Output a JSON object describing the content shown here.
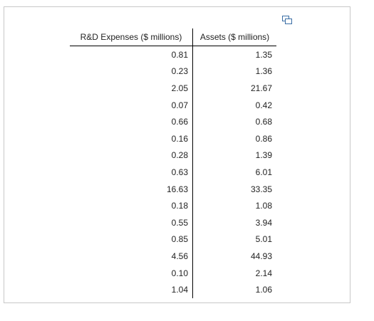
{
  "table": {
    "headers": {
      "rd": "R&D Expenses ($ millions)",
      "assets": "Assets ($ millions)"
    },
    "rows": [
      {
        "rd": "0.81",
        "assets": "1.35"
      },
      {
        "rd": "0.23",
        "assets": "1.36"
      },
      {
        "rd": "2.05",
        "assets": "21.67"
      },
      {
        "rd": "0.07",
        "assets": "0.42"
      },
      {
        "rd": "0.66",
        "assets": "0.68"
      },
      {
        "rd": "0.16",
        "assets": "0.86"
      },
      {
        "rd": "0.28",
        "assets": "1.39"
      },
      {
        "rd": "0.63",
        "assets": "6.01"
      },
      {
        "rd": "16.63",
        "assets": "33.35"
      },
      {
        "rd": "0.18",
        "assets": "1.08"
      },
      {
        "rd": "0.55",
        "assets": "3.94"
      },
      {
        "rd": "0.85",
        "assets": "5.01"
      },
      {
        "rd": "4.56",
        "assets": "44.93"
      },
      {
        "rd": "0.10",
        "assets": "2.14"
      },
      {
        "rd": "1.04",
        "assets": "1.06"
      }
    ]
  },
  "icons": {
    "copy": "copy-icon"
  },
  "colors": {
    "border": "#c8c8c8",
    "rule": "#000000",
    "text": "#222222",
    "icon": "#3a6ea5"
  }
}
